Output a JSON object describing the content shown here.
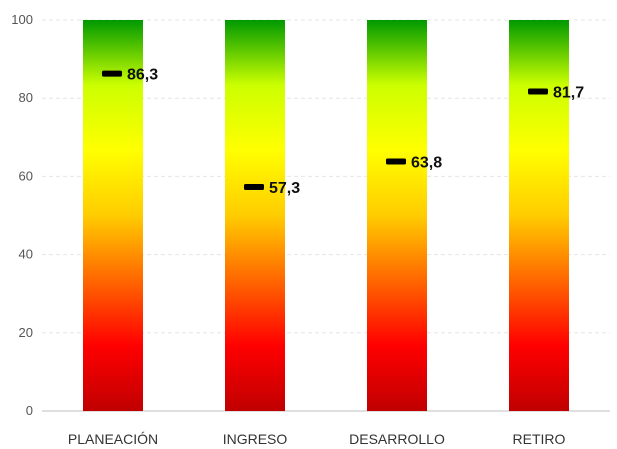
{
  "chart_data": {
    "type": "bar",
    "categories": [
      "PLANEACIÓN",
      "INGRESO",
      "DESARROLLO",
      "RETIRO"
    ],
    "values": [
      86.3,
      57.3,
      63.8,
      81.7
    ],
    "value_labels": [
      "86,3",
      "57,3",
      "63,8",
      "81,7"
    ],
    "y_ticks": [
      "0",
      "20",
      "40",
      "60",
      "80",
      "100"
    ],
    "ylim": [
      0,
      100
    ],
    "grid": true,
    "title": "",
    "xlabel": "",
    "ylabel": "",
    "bar_gradient": [
      "#c00000",
      "#ff0000",
      "#ff6600",
      "#ffcc00",
      "#ffff00",
      "#ccff00",
      "#009900"
    ],
    "marker_color": "#000000",
    "grid_color": "#e6e6e6"
  }
}
